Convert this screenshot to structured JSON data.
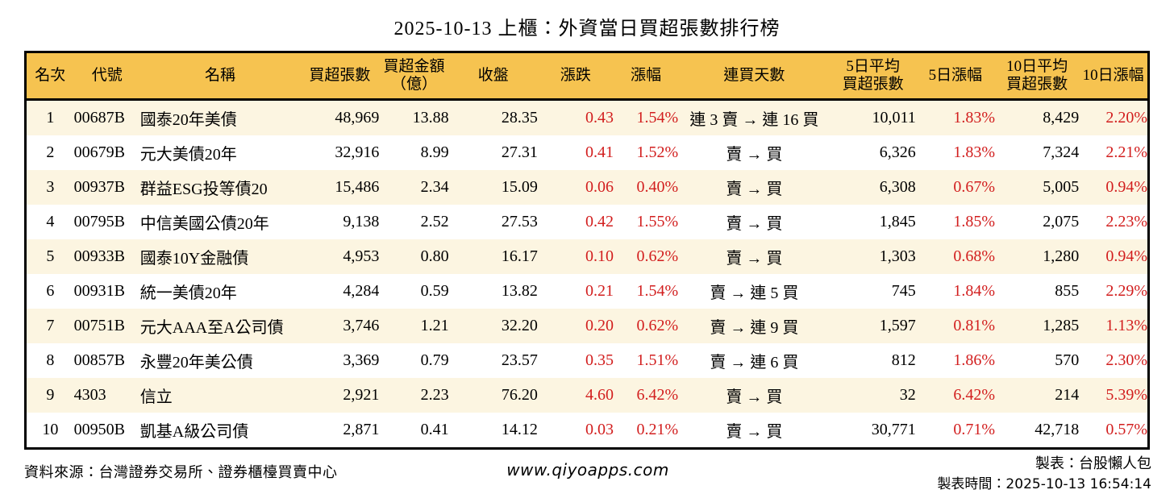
{
  "title": "2025-10-13 上櫃：外資當日買超張數排行榜",
  "colors": {
    "header_bg": "#f6c350",
    "stripe_bg": "#fcf5e1",
    "up_red": "#d21e1e",
    "border": "#000000"
  },
  "chart_data": {
    "type": "table",
    "title": "2025-10-13 上櫃：外資當日買超張數排行榜",
    "columns": [
      {
        "key": "rank",
        "label": "名次",
        "align": "center",
        "red": false
      },
      {
        "key": "code",
        "label": "代號",
        "align": "left",
        "red": false
      },
      {
        "key": "name",
        "label": "名稱",
        "align": "left",
        "red": false
      },
      {
        "key": "net_buy_volume",
        "label": "買超張數",
        "align": "right",
        "red": false
      },
      {
        "key": "net_buy_amount",
        "label": "買超金額\n（億）",
        "align": "right",
        "red": false
      },
      {
        "key": "close",
        "label": "收盤",
        "align": "right",
        "red": false
      },
      {
        "key": "change",
        "label": "漲跌",
        "align": "right",
        "red": true
      },
      {
        "key": "change_pct",
        "label": "漲幅",
        "align": "right",
        "red": true
      },
      {
        "key": "buy_streak",
        "label": "連買天數",
        "align": "center",
        "red": false
      },
      {
        "key": "avg5_net_buy",
        "label": "5日平均\n買超張數",
        "align": "right",
        "red": false
      },
      {
        "key": "pct_5d",
        "label": "5日漲幅",
        "align": "right",
        "red": true
      },
      {
        "key": "avg10_net_buy",
        "label": "10日平均\n買超張數",
        "align": "right",
        "red": false
      },
      {
        "key": "pct_10d",
        "label": "10日漲幅",
        "align": "right",
        "red": true
      }
    ],
    "rows": [
      [
        "1",
        "00687B",
        "國泰20年美債",
        "48,969",
        "13.88",
        "28.35",
        "0.43",
        "1.54%",
        "連 3 賣 → 連 16 買",
        "10,011",
        "1.83%",
        "8,429",
        "2.20%"
      ],
      [
        "2",
        "00679B",
        "元大美債20年",
        "32,916",
        "8.99",
        "27.31",
        "0.41",
        "1.52%",
        "賣 → 買",
        "6,326",
        "1.83%",
        "7,324",
        "2.21%"
      ],
      [
        "3",
        "00937B",
        "群益ESG投等債20",
        "15,486",
        "2.34",
        "15.09",
        "0.06",
        "0.40%",
        "賣 → 買",
        "6,308",
        "0.67%",
        "5,005",
        "0.94%"
      ],
      [
        "4",
        "00795B",
        "中信美國公債20年",
        "9,138",
        "2.52",
        "27.53",
        "0.42",
        "1.55%",
        "賣 → 買",
        "1,845",
        "1.85%",
        "2,075",
        "2.23%"
      ],
      [
        "5",
        "00933B",
        "國泰10Y金融債",
        "4,953",
        "0.80",
        "16.17",
        "0.10",
        "0.62%",
        "賣 → 買",
        "1,303",
        "0.68%",
        "1,280",
        "0.94%"
      ],
      [
        "6",
        "00931B",
        "統一美債20年",
        "4,284",
        "0.59",
        "13.82",
        "0.21",
        "1.54%",
        "賣 → 連 5 買",
        "745",
        "1.84%",
        "855",
        "2.29%"
      ],
      [
        "7",
        "00751B",
        "元大AAA至A公司債",
        "3,746",
        "1.21",
        "32.20",
        "0.20",
        "0.62%",
        "賣 → 連 9 買",
        "1,597",
        "0.81%",
        "1,285",
        "1.13%"
      ],
      [
        "8",
        "00857B",
        "永豐20年美公債",
        "3,369",
        "0.79",
        "23.57",
        "0.35",
        "1.51%",
        "賣 → 連 6 買",
        "812",
        "1.86%",
        "570",
        "2.30%"
      ],
      [
        "9",
        "4303",
        "信立",
        "2,921",
        "2.23",
        "76.20",
        "4.60",
        "6.42%",
        "賣 → 買",
        "32",
        "6.42%",
        "214",
        "5.39%"
      ],
      [
        "10",
        "00950B",
        "凱基A級公司債",
        "2,871",
        "0.41",
        "14.12",
        "0.03",
        "0.21%",
        "賣 → 買",
        "30,771",
        "0.71%",
        "42,718",
        "0.57%"
      ]
    ]
  },
  "footer": {
    "source": "資料來源：台灣證券交易所、證券櫃檯買賣中心",
    "website": "www.qiyoapps.com",
    "maker": "製表：台股懶人包",
    "made_at": "製表時間：2025-10-13 16:54:14"
  }
}
